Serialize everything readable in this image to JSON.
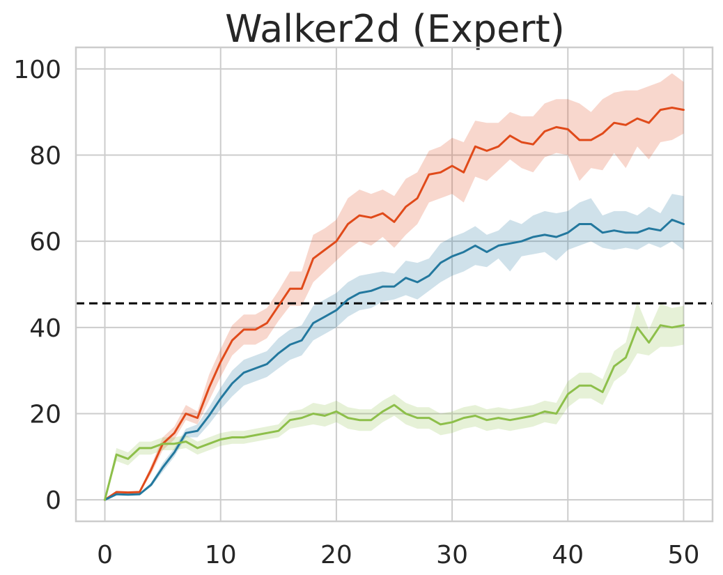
{
  "chart_data": {
    "type": "line",
    "title": "Walker2d (Expert)",
    "xlabel": "",
    "ylabel": "",
    "xlim": [
      -2.5,
      52.5
    ],
    "ylim": [
      -5,
      105
    ],
    "xticks": [
      0,
      10,
      20,
      30,
      40,
      50
    ],
    "yticks": [
      0,
      20,
      40,
      60,
      80,
      100
    ],
    "grid": true,
    "legend": "none",
    "reference_line": {
      "y": 45.6,
      "color": "#000000",
      "style": "dashed"
    },
    "x": [
      0,
      1,
      2,
      3,
      4,
      5,
      6,
      7,
      8,
      9,
      10,
      11,
      12,
      13,
      14,
      15,
      16,
      17,
      18,
      19,
      20,
      21,
      22,
      23,
      24,
      25,
      26,
      27,
      28,
      29,
      30,
      31,
      32,
      33,
      34,
      35,
      36,
      37,
      38,
      39,
      40,
      41,
      42,
      43,
      44,
      45,
      46,
      47,
      48,
      49,
      50
    ],
    "series": [
      {
        "color": "#e04a1a",
        "values": [
          0,
          1.8,
          1.7,
          1.8,
          7,
          13,
          15.5,
          20,
          19,
          26,
          32,
          37,
          39.5,
          39.5,
          41,
          45,
          49,
          49,
          56,
          58,
          60,
          64,
          66,
          65.5,
          66.5,
          64.5,
          68,
          70,
          75.5,
          76,
          77.5,
          76,
          82,
          81,
          82,
          84.5,
          83,
          82.5,
          85.5,
          86.5,
          86,
          83.5,
          83.5,
          85,
          87.5,
          87,
          88.5,
          87.5,
          90.5,
          91,
          90.5
        ],
        "lower": [
          0,
          1.5,
          1.4,
          1.5,
          6,
          11.5,
          14,
          18.5,
          17.5,
          23,
          28.5,
          33.5,
          36,
          36,
          37.5,
          41.5,
          45,
          45,
          50.5,
          53,
          55.5,
          58,
          60,
          59,
          61,
          58.5,
          61.5,
          64,
          69,
          70,
          71,
          69,
          75,
          74,
          76.5,
          79,
          77,
          76,
          79.5,
          80.5,
          80,
          74,
          77,
          76.5,
          80.5,
          77,
          82,
          79,
          83,
          83.5,
          85
        ],
        "upper": [
          0,
          2.1,
          2,
          2.1,
          8,
          14.5,
          17,
          22,
          20.5,
          29,
          35,
          40.5,
          43,
          43,
          44.5,
          48.5,
          53,
          53,
          61.5,
          63,
          65,
          70,
          72,
          71,
          72,
          70.5,
          74.5,
          76,
          81,
          82,
          84,
          83,
          88,
          87.5,
          87.5,
          90,
          89,
          89,
          92,
          93,
          93,
          92,
          90,
          93,
          94.5,
          95,
          95,
          96,
          97,
          99,
          97
        ]
      },
      {
        "color": "#23789e",
        "values": [
          0,
          1.3,
          1.2,
          1.3,
          3.5,
          7.5,
          11,
          15.5,
          16,
          19.5,
          23.5,
          27,
          29.5,
          30.5,
          31.5,
          34,
          36,
          37,
          41,
          42.5,
          44,
          46.5,
          48,
          48.5,
          49.5,
          49.5,
          51.5,
          50.5,
          52,
          55,
          56.5,
          57.5,
          59,
          57.5,
          59,
          59.5,
          60,
          61,
          61.5,
          61,
          62,
          64,
          64,
          62,
          62.5,
          62,
          62,
          63,
          62.5,
          65,
          64
        ],
        "lower": [
          0,
          1.1,
          1,
          1.1,
          3,
          6.5,
          10,
          14.5,
          14.5,
          17.5,
          21,
          24,
          26.5,
          27.5,
          28.5,
          30.5,
          32.5,
          33.5,
          37,
          38.5,
          40,
          42.5,
          44,
          44.5,
          46,
          46.5,
          47.5,
          46.5,
          48.5,
          50.5,
          52,
          53,
          54.5,
          54,
          56,
          53,
          56.5,
          57,
          57.5,
          55.5,
          58,
          59,
          60,
          58.5,
          58,
          58.5,
          58,
          59.5,
          58.5,
          60,
          58
        ],
        "upper": [
          0,
          1.5,
          1.4,
          1.5,
          4,
          8.5,
          12,
          16.5,
          17.5,
          21.5,
          26,
          30,
          32.5,
          33.5,
          34.5,
          37.5,
          39.5,
          40.5,
          45,
          46.5,
          48,
          50.5,
          52,
          52.5,
          53,
          52.5,
          55.5,
          55,
          56,
          59.5,
          61,
          62,
          63.5,
          61.5,
          62.5,
          65,
          64,
          66,
          67,
          66.5,
          67,
          69,
          70,
          66,
          67,
          67,
          66,
          68,
          66.5,
          71,
          70.5
        ]
      },
      {
        "color": "#8dbf4a",
        "values": [
          0,
          10.5,
          9.5,
          12,
          12,
          13,
          13,
          13.5,
          12,
          13,
          14,
          14.5,
          14.5,
          15,
          15.5,
          16,
          18.5,
          19,
          20,
          19.5,
          20.5,
          19,
          18.5,
          18.5,
          20.5,
          22,
          20,
          19,
          19,
          17.5,
          18,
          19,
          19.5,
          18.5,
          19,
          18.5,
          19,
          19.5,
          20.5,
          20,
          24.5,
          26.5,
          26.5,
          25,
          31,
          33,
          40,
          36.5,
          40.5,
          40,
          40.5
        ],
        "lower": [
          0,
          9,
          8,
          10.5,
          10.5,
          11.5,
          11.5,
          12,
          10.5,
          11.5,
          12.5,
          13,
          13,
          13.5,
          14,
          14.5,
          16.5,
          17,
          17.5,
          17,
          18,
          16.5,
          16,
          16,
          18,
          19.5,
          17.5,
          16.5,
          16.5,
          15,
          15.5,
          16.5,
          17,
          16,
          16.5,
          16,
          16.5,
          17,
          18,
          17.5,
          21.5,
          23.5,
          23.5,
          22,
          27.5,
          29.5,
          34,
          33.5,
          35.5,
          35.5,
          36
        ],
        "upper": [
          0,
          12,
          11,
          13.5,
          13.5,
          14.5,
          14.5,
          15,
          13.5,
          14.5,
          15.5,
          16,
          16,
          16.5,
          17,
          17.5,
          20.5,
          21,
          22.5,
          22,
          23,
          21.5,
          21,
          21,
          23,
          24.5,
          22.5,
          21.5,
          21.5,
          20,
          20.5,
          21.5,
          22,
          21,
          21.5,
          21,
          21.5,
          22,
          23,
          22.5,
          27.5,
          29.5,
          29.5,
          28,
          34.5,
          36.5,
          46,
          39.5,
          45.5,
          44.5,
          45
        ]
      }
    ]
  }
}
